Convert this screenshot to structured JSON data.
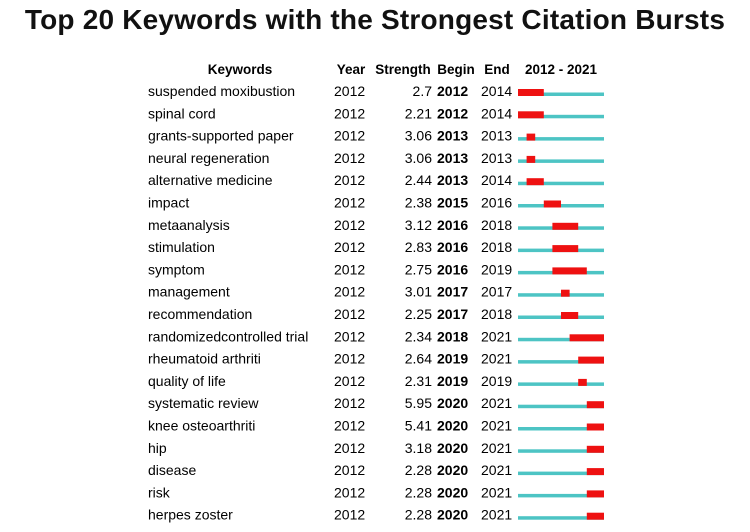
{
  "chart_data": {
    "type": "table",
    "title": "Top 20 Keywords with the Strongest Citation Bursts",
    "headers": {
      "keywords": "Keywords",
      "year": "Year",
      "strength": "Strength",
      "begin": "Begin",
      "end": "End",
      "range": "2012 - 2021"
    },
    "timeline": {
      "start": 2012,
      "end": 2021
    },
    "colors": {
      "baseline": "#4dc4c4",
      "burst": "#ee1111"
    },
    "rows": [
      {
        "keyword": "suspended moxibustion",
        "year": "2012",
        "strength": "2.7",
        "begin": "2012",
        "end": "2014"
      },
      {
        "keyword": "spinal cord",
        "year": "2012",
        "strength": "2.21",
        "begin": "2012",
        "end": "2014"
      },
      {
        "keyword": "grants-supported paper",
        "year": "2012",
        "strength": "3.06",
        "begin": "2013",
        "end": "2013"
      },
      {
        "keyword": "neural regeneration",
        "year": "2012",
        "strength": "3.06",
        "begin": "2013",
        "end": "2013"
      },
      {
        "keyword": "alternative medicine",
        "year": "2012",
        "strength": "2.44",
        "begin": "2013",
        "end": "2014"
      },
      {
        "keyword": "impact",
        "year": "2012",
        "strength": "2.38",
        "begin": "2015",
        "end": "2016"
      },
      {
        "keyword": "metaanalysis",
        "year": "2012",
        "strength": "3.12",
        "begin": "2016",
        "end": "2018"
      },
      {
        "keyword": "stimulation",
        "year": "2012",
        "strength": "2.83",
        "begin": "2016",
        "end": "2018"
      },
      {
        "keyword": "symptom",
        "year": "2012",
        "strength": "2.75",
        "begin": "2016",
        "end": "2019"
      },
      {
        "keyword": "management",
        "year": "2012",
        "strength": "3.01",
        "begin": "2017",
        "end": "2017"
      },
      {
        "keyword": "recommendation",
        "year": "2012",
        "strength": "2.25",
        "begin": "2017",
        "end": "2018"
      },
      {
        "keyword": "randomizedcontrolled trial",
        "year": "2012",
        "strength": "2.34",
        "begin": "2018",
        "end": "2021"
      },
      {
        "keyword": "rheumatoid arthriti",
        "year": "2012",
        "strength": "2.64",
        "begin": "2019",
        "end": "2021"
      },
      {
        "keyword": "quality of life",
        "year": "2012",
        "strength": "2.31",
        "begin": "2019",
        "end": "2019"
      },
      {
        "keyword": "systematic review",
        "year": "2012",
        "strength": "5.95",
        "begin": "2020",
        "end": "2021"
      },
      {
        "keyword": "knee osteoarthriti",
        "year": "2012",
        "strength": "5.41",
        "begin": "2020",
        "end": "2021"
      },
      {
        "keyword": "hip",
        "year": "2012",
        "strength": "3.18",
        "begin": "2020",
        "end": "2021"
      },
      {
        "keyword": "disease",
        "year": "2012",
        "strength": "2.28",
        "begin": "2020",
        "end": "2021"
      },
      {
        "keyword": "risk",
        "year": "2012",
        "strength": "2.28",
        "begin": "2020",
        "end": "2021"
      },
      {
        "keyword": "herpes zoster",
        "year": "2012",
        "strength": "2.28",
        "begin": "2020",
        "end": "2021"
      }
    ]
  }
}
